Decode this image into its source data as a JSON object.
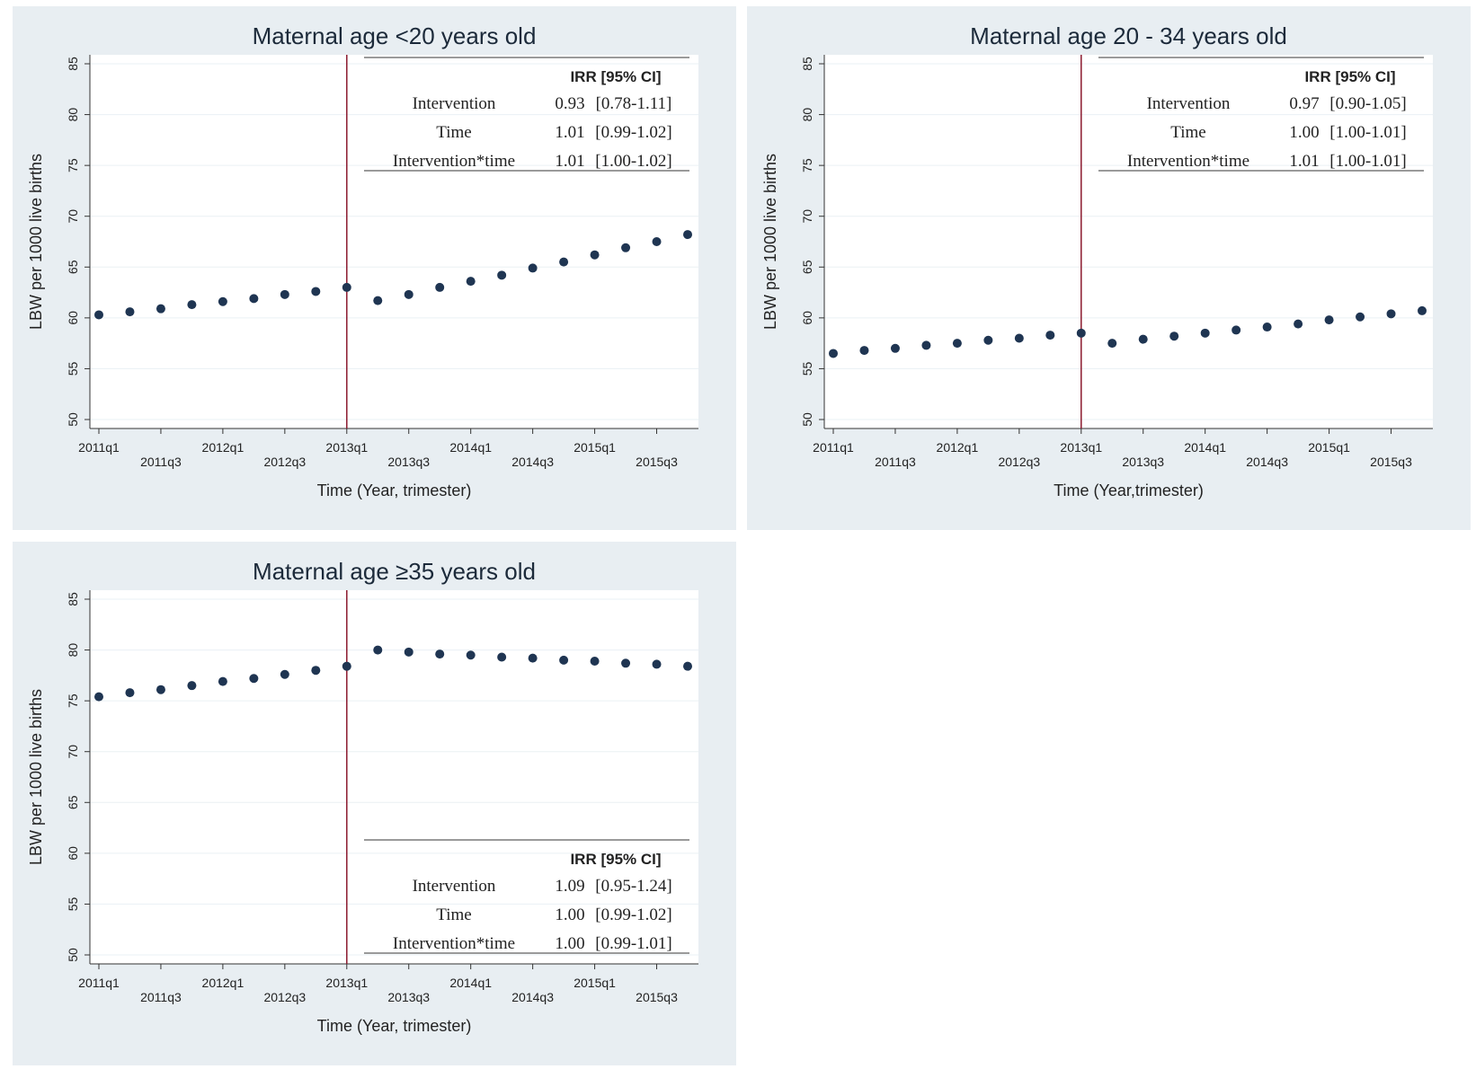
{
  "colors": {
    "panel_bg": "#e8eef2",
    "plot_bg": "#ffffff",
    "grid": "#eaf0f4",
    "point": "#1f3552",
    "intervention_line": "#8b1a2e",
    "table_rule": "#9a9a9a"
  },
  "chart_data": [
    {
      "type": "scatter",
      "title": "Maternal age <20 years old",
      "xlabel": "Time (Year, trimester)",
      "ylabel": "LBW per 1000 live births",
      "ylim": [
        50,
        85
      ],
      "yticks": [
        50,
        55,
        60,
        65,
        70,
        75,
        80,
        85
      ],
      "categories": [
        "2011q1",
        "2011q2",
        "2011q3",
        "2011q4",
        "2012q1",
        "2012q2",
        "2012q3",
        "2012q4",
        "2013q1",
        "2013q2",
        "2013q3",
        "2013q4",
        "2014q1",
        "2014q2",
        "2014q3",
        "2014q4",
        "2015q1",
        "2015q2",
        "2015q3",
        "2015q4"
      ],
      "xtick_labels": [
        {
          "label": "2011q1",
          "index": 0,
          "row": "upper"
        },
        {
          "label": "2011q3",
          "index": 2,
          "row": "lower"
        },
        {
          "label": "2012q1",
          "index": 4,
          "row": "upper"
        },
        {
          "label": "2012q3",
          "index": 6,
          "row": "lower"
        },
        {
          "label": "2013q1",
          "index": 8,
          "row": "upper"
        },
        {
          "label": "2013q3",
          "index": 10,
          "row": "lower"
        },
        {
          "label": "2014q1",
          "index": 12,
          "row": "upper"
        },
        {
          "label": "2014q3",
          "index": 14,
          "row": "lower"
        },
        {
          "label": "2015q1",
          "index": 16,
          "row": "upper"
        },
        {
          "label": "2015q3",
          "index": 18,
          "row": "lower"
        }
      ],
      "values": [
        60.3,
        60.6,
        60.9,
        61.3,
        61.6,
        61.9,
        62.3,
        62.6,
        63.0,
        61.7,
        62.3,
        63.0,
        63.6,
        64.2,
        64.9,
        65.5,
        66.2,
        66.9,
        67.5,
        68.2
      ],
      "intervention_index": 8,
      "table": {
        "placement": "top-right",
        "header": "IRR [95% CI]",
        "rows": [
          {
            "label": "Intervention",
            "irr": "0.93",
            "ci": "[0.78-1.11]"
          },
          {
            "label": "Time",
            "irr": "1.01",
            "ci": "[0.99-1.02]"
          },
          {
            "label": "Intervention*time",
            "irr": "1.01",
            "ci": "[1.00-1.02]"
          }
        ]
      }
    },
    {
      "type": "scatter",
      "title": "Maternal age 20 - 34 years old",
      "xlabel": "Time (Year,trimester)",
      "ylabel": "LBW per 1000 live births",
      "ylim": [
        50,
        85
      ],
      "yticks": [
        50,
        55,
        60,
        65,
        70,
        75,
        80,
        85
      ],
      "categories": [
        "2011q1",
        "2011q2",
        "2011q3",
        "2011q4",
        "2012q1",
        "2012q2",
        "2012q3",
        "2012q4",
        "2013q1",
        "2013q2",
        "2013q3",
        "2013q4",
        "2014q1",
        "2014q2",
        "2014q3",
        "2014q4",
        "2015q1",
        "2015q2",
        "2015q3",
        "2015q4"
      ],
      "xtick_labels": [
        {
          "label": "2011q1",
          "index": 0,
          "row": "upper"
        },
        {
          "label": "2011q3",
          "index": 2,
          "row": "lower"
        },
        {
          "label": "2012q1",
          "index": 4,
          "row": "upper"
        },
        {
          "label": "2012q3",
          "index": 6,
          "row": "lower"
        },
        {
          "label": "2013q1",
          "index": 8,
          "row": "upper"
        },
        {
          "label": "2013q3",
          "index": 10,
          "row": "lower"
        },
        {
          "label": "2014q1",
          "index": 12,
          "row": "upper"
        },
        {
          "label": "2014q3",
          "index": 14,
          "row": "lower"
        },
        {
          "label": "2015q1",
          "index": 16,
          "row": "upper"
        },
        {
          "label": "2015q3",
          "index": 18,
          "row": "lower"
        }
      ],
      "values": [
        56.5,
        56.8,
        57.0,
        57.3,
        57.5,
        57.8,
        58.0,
        58.3,
        58.5,
        57.5,
        57.9,
        58.2,
        58.5,
        58.8,
        59.1,
        59.4,
        59.8,
        60.1,
        60.4,
        60.7
      ],
      "intervention_index": 8,
      "table": {
        "placement": "top-right",
        "header": "IRR [95% CI]",
        "rows": [
          {
            "label": "Intervention",
            "irr": "0.97",
            "ci": "[0.90-1.05]"
          },
          {
            "label": "Time",
            "irr": "1.00",
            "ci": "[1.00-1.01]"
          },
          {
            "label": "Intervention*time",
            "irr": "1.01",
            "ci": "[1.00-1.01]"
          }
        ]
      }
    },
    {
      "type": "scatter",
      "title": "Maternal age ≥35 years old",
      "xlabel": "Time (Year, trimester)",
      "ylabel": "LBW per 1000 live births",
      "ylim": [
        50,
        85
      ],
      "yticks": [
        50,
        55,
        60,
        65,
        70,
        75,
        80,
        85
      ],
      "categories": [
        "2011q1",
        "2011q2",
        "2011q3",
        "2011q4",
        "2012q1",
        "2012q2",
        "2012q3",
        "2012q4",
        "2013q1",
        "2013q2",
        "2013q3",
        "2013q4",
        "2014q1",
        "2014q2",
        "2014q3",
        "2014q4",
        "2015q1",
        "2015q2",
        "2015q3",
        "2015q4"
      ],
      "xtick_labels": [
        {
          "label": "2011q1",
          "index": 0,
          "row": "upper"
        },
        {
          "label": "2011q3",
          "index": 2,
          "row": "lower"
        },
        {
          "label": "2012q1",
          "index": 4,
          "row": "upper"
        },
        {
          "label": "2012q3",
          "index": 6,
          "row": "lower"
        },
        {
          "label": "2013q1",
          "index": 8,
          "row": "upper"
        },
        {
          "label": "2013q3",
          "index": 10,
          "row": "lower"
        },
        {
          "label": "2014q1",
          "index": 12,
          "row": "upper"
        },
        {
          "label": "2014q3",
          "index": 14,
          "row": "lower"
        },
        {
          "label": "2015q1",
          "index": 16,
          "row": "upper"
        },
        {
          "label": "2015q3",
          "index": 18,
          "row": "lower"
        }
      ],
      "values": [
        75.4,
        75.8,
        76.1,
        76.5,
        76.9,
        77.2,
        77.6,
        78.0,
        78.4,
        80.0,
        79.8,
        79.6,
        79.5,
        79.3,
        79.2,
        79.0,
        78.9,
        78.7,
        78.6,
        78.4
      ],
      "intervention_index": 8,
      "table": {
        "placement": "bottom-right",
        "header": "IRR [95% CI]",
        "rows": [
          {
            "label": "Intervention",
            "irr": "1.09",
            "ci": "[0.95-1.24]"
          },
          {
            "label": "Time",
            "irr": "1.00",
            "ci": "[0.99-1.02]"
          },
          {
            "label": "Intervention*time",
            "irr": "1.00",
            "ci": "[0.99-1.01]"
          }
        ]
      }
    }
  ]
}
